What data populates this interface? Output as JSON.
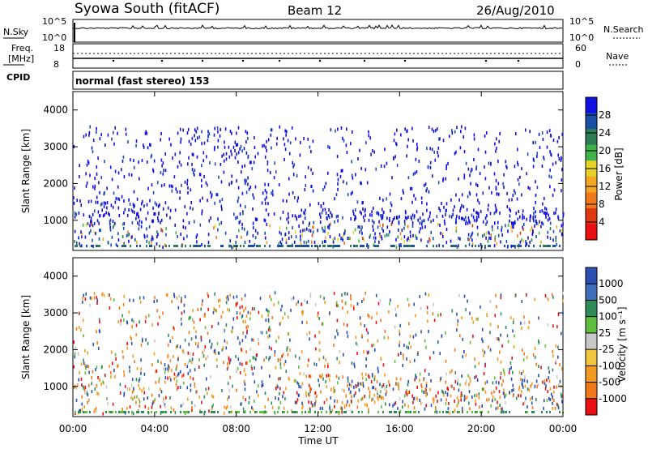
{
  "header": {
    "station": "Syowa South (fitACF)",
    "beam": "Beam 12",
    "date": "26/Aug/2010"
  },
  "labels": {
    "nsky": "N.Sky",
    "nsearch": "N.Search",
    "freq_top": "Freq.",
    "freq_unit": "[MHz]",
    "nave": "Nave",
    "cpid": "CPID",
    "cpid_value": "normal (fast stereo) 153",
    "ylabel": "Slant Range [km]",
    "xlabel": "Time UT",
    "noise_log_hi": "10^5",
    "noise_log_lo": "10^0",
    "noise_right_hi": "10^5",
    "noise_right_lo": "10^0",
    "freq_ticks": [
      "18",
      "8"
    ],
    "nave_ticks": [
      "60",
      "0"
    ]
  },
  "chart_data": [
    {
      "name": "power",
      "type": "heatmap",
      "x_ticks": [
        "00:00",
        "04:00",
        "08:00",
        "12:00",
        "16:00",
        "20:00",
        "00:00"
      ],
      "y_ticks": [
        "1000",
        "2000",
        "3000",
        "4000"
      ],
      "ylim": [
        180,
        4500
      ],
      "colorbar_label": "Power [dB]",
      "colorbar_ticks": [
        "4",
        "8",
        "12",
        "16",
        "20",
        "24",
        "28"
      ],
      "colors": [
        "#1010e0",
        "#1a4fa8",
        "#2e7d55",
        "#3fb34a",
        "#e6d226",
        "#f5a623",
        "#f07a1a",
        "#e03a12",
        "#e81010"
      ]
    },
    {
      "name": "velocity",
      "type": "heatmap",
      "x_ticks": [
        "00:00",
        "04:00",
        "08:00",
        "12:00",
        "16:00",
        "20:00",
        "00:00"
      ],
      "y_ticks": [
        "1000",
        "2000",
        "3000",
        "4000"
      ],
      "ylim": [
        180,
        4500
      ],
      "colorbar_label": "Velocity [m s⁻¹]",
      "colorbar_ticks": [
        "1000",
        "500",
        "100",
        "25",
        "-25",
        "-100",
        "-500",
        "-1000"
      ],
      "colors": [
        "#2a4fb0",
        "#3f6fb8",
        "#2f8a5a",
        "#5fbf40",
        "#c8c8c8",
        "#f2c840",
        "#f59a20",
        "#f07a1a",
        "#e81010"
      ]
    }
  ]
}
